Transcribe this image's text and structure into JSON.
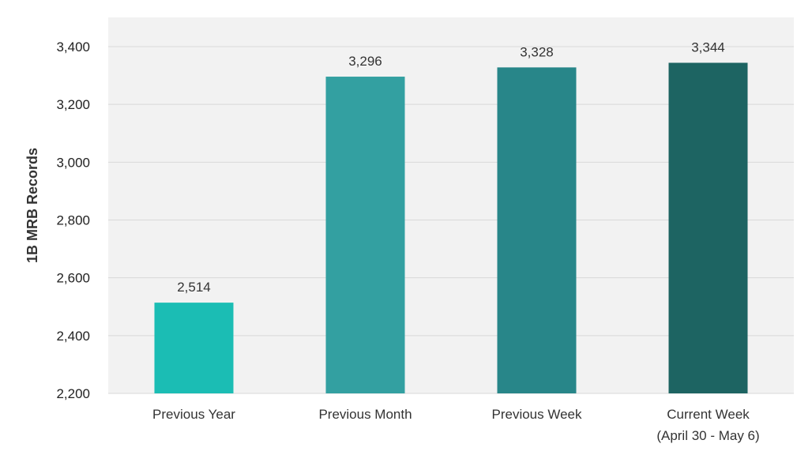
{
  "chart_data": {
    "type": "bar",
    "ylabel": "1B MRB Records",
    "categories": [
      [
        "Previous Year"
      ],
      [
        "Previous Month"
      ],
      [
        "Previous Week"
      ],
      [
        "Current Week",
        "(April 30 - May 6)"
      ]
    ],
    "values": [
      2514,
      3296,
      3328,
      3344
    ],
    "data_labels": [
      "2,514",
      "3,296",
      "3,328",
      "3,344"
    ],
    "bar_colors": [
      "#1bbdb4",
      "#33a0a1",
      "#288689",
      "#1d6462"
    ],
    "ylim": [
      2200,
      3400
    ],
    "yticks": [
      2200,
      2400,
      2600,
      2800,
      3000,
      3200,
      3400
    ],
    "ytick_labels": [
      "2,200",
      "2,400",
      "2,600",
      "2,800",
      "3,000",
      "3,200",
      "3,400"
    ],
    "grid": true,
    "plot_background": "#f2f2f2",
    "grid_color": "#d9d9d9"
  }
}
